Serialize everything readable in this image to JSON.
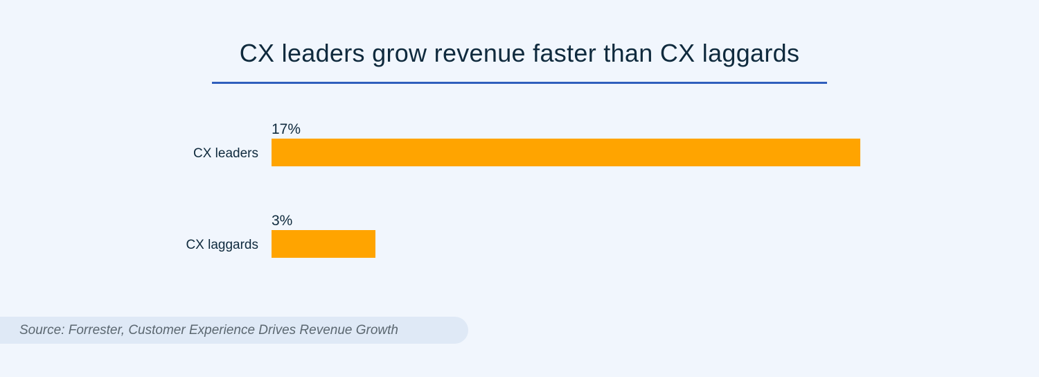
{
  "chart_data": {
    "type": "bar",
    "orientation": "horizontal",
    "title": "CX leaders grow revenue faster than CX laggards",
    "categories": [
      "CX leaders",
      "CX laggards"
    ],
    "values": [
      17,
      3
    ],
    "value_labels": [
      "17%",
      "3%"
    ],
    "unit": "%",
    "xlim": [
      0,
      17
    ],
    "grid": false,
    "bar_color": "#ffa400"
  },
  "colors": {
    "background": "#f1f6fd",
    "title_text": "#0f2a3d",
    "accent_underline": "#2f5fbd",
    "source_background": "#dfe9f6"
  },
  "source": "Source: Forrester, Customer Experience Drives Revenue Growth"
}
